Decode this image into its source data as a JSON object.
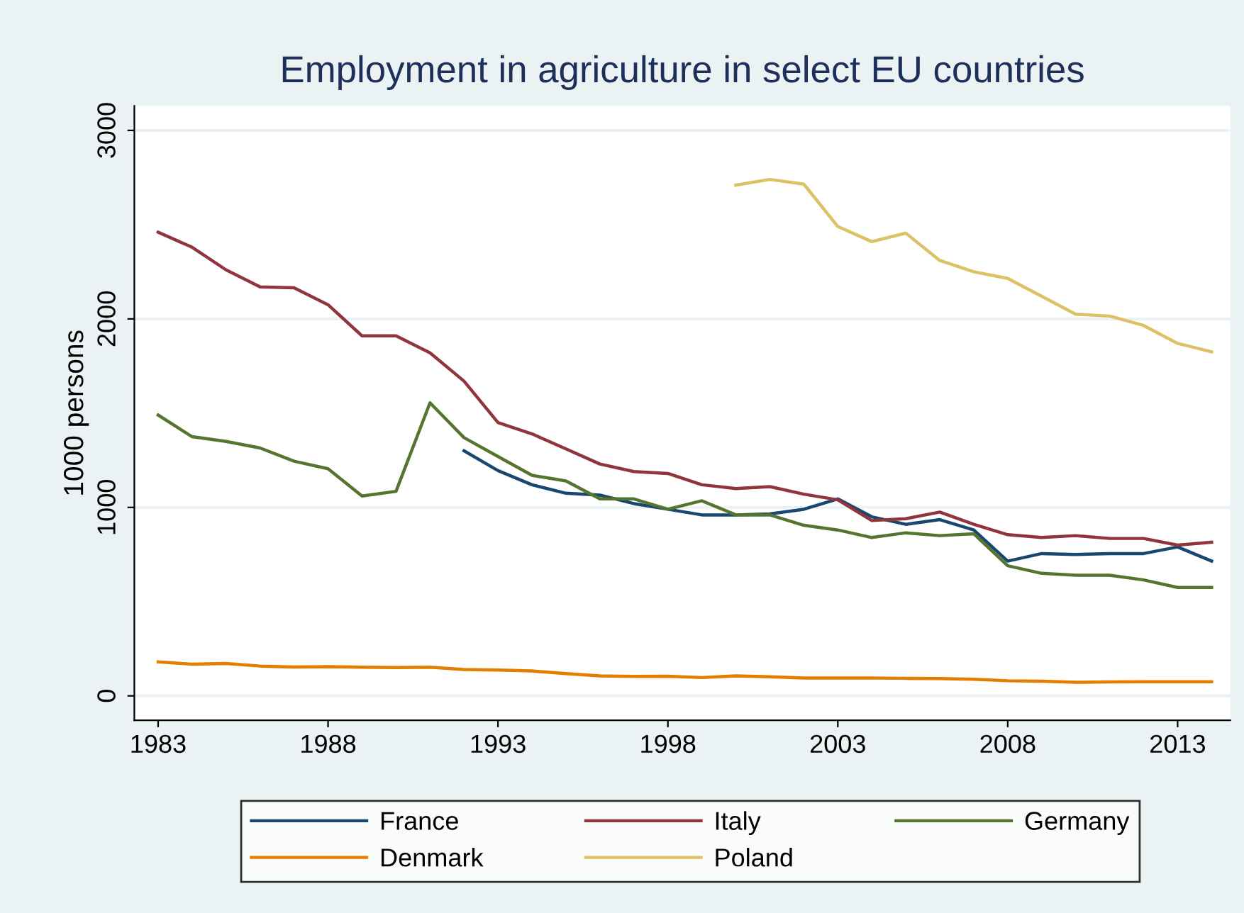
{
  "chart_data": {
    "type": "line",
    "title": "Employment in agriculture in select EU countries",
    "ylabel": "1000 persons",
    "x": [
      1983,
      1984,
      1985,
      1986,
      1987,
      1988,
      1989,
      1990,
      1991,
      1992,
      1993,
      1994,
      1995,
      1996,
      1997,
      1998,
      1999,
      2000,
      2001,
      2002,
      2003,
      2004,
      2005,
      2006,
      2007,
      2008,
      2009,
      2010,
      2011,
      2012,
      2013,
      2014
    ],
    "series": [
      {
        "name": "France",
        "color": "#1a476f",
        "values": [
          null,
          null,
          null,
          null,
          null,
          null,
          null,
          null,
          null,
          1300,
          1195,
          1120,
          1075,
          1065,
          1020,
          990,
          960,
          960,
          965,
          990,
          1045,
          950,
          910,
          935,
          880,
          715,
          755,
          750,
          755,
          755,
          790,
          715
        ]
      },
      {
        "name": "Italy",
        "color": "#90353b",
        "values": [
          2460,
          2380,
          2260,
          2170,
          2165,
          2075,
          1910,
          1910,
          1820,
          1670,
          1450,
          1390,
          1310,
          1230,
          1190,
          1180,
          1120,
          1100,
          1110,
          1070,
          1040,
          930,
          940,
          975,
          910,
          855,
          840,
          850,
          835,
          835,
          800,
          815
        ]
      },
      {
        "name": "Germany",
        "color": "#55752f",
        "values": [
          1490,
          1375,
          1350,
          1315,
          1245,
          1205,
          1060,
          1085,
          1555,
          1370,
          1270,
          1170,
          1140,
          1045,
          1045,
          990,
          1035,
          960,
          960,
          905,
          880,
          840,
          865,
          850,
          860,
          690,
          650,
          640,
          640,
          615,
          575,
          575
        ]
      },
      {
        "name": "Denmark",
        "color": "#e37e00",
        "values": [
          180,
          168,
          172,
          158,
          153,
          155,
          152,
          150,
          152,
          140,
          137,
          132,
          118,
          106,
          103,
          104,
          97,
          106,
          101,
          95,
          95,
          95,
          93,
          92,
          88,
          80,
          78,
          72,
          74,
          75,
          75,
          75
        ]
      },
      {
        "name": "Poland",
        "color": "#dcc165",
        "values": [
          null,
          null,
          null,
          null,
          null,
          null,
          null,
          null,
          null,
          null,
          null,
          null,
          null,
          null,
          null,
          null,
          null,
          2710,
          2740,
          2715,
          2490,
          2410,
          2455,
          2310,
          2250,
          2215,
          2120,
          2025,
          2015,
          1965,
          1870,
          1825
        ]
      }
    ],
    "xlim": [
      1982.3,
      2014.55
    ],
    "xticks": [
      1983,
      1988,
      1993,
      1998,
      2003,
      2008,
      2013
    ],
    "ylim": [
      -130,
      3130
    ],
    "yticks": [
      0,
      1000,
      2000,
      3000
    ],
    "grid": "y",
    "legend": "bottom",
    "marker": "none",
    "line_style": "solid"
  }
}
